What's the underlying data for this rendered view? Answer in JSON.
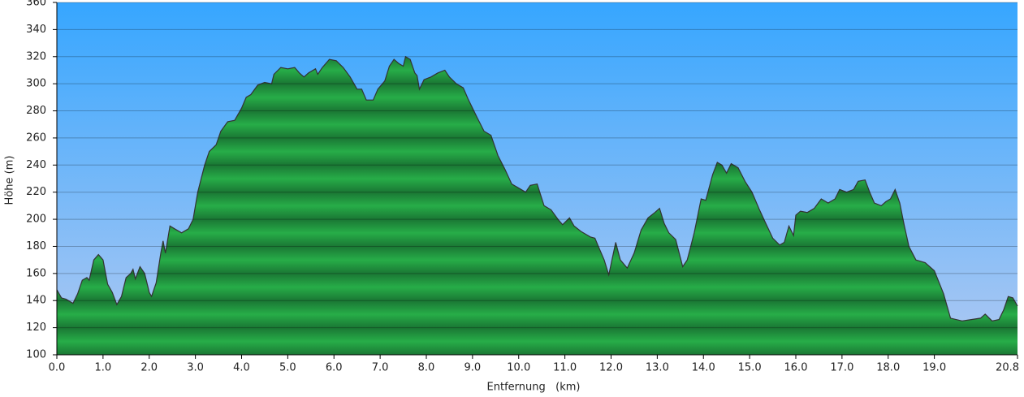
{
  "chart_data": {
    "type": "area",
    "x_label": "Entfernung   (km)",
    "y_label": "Höhe (m)",
    "xlim": [
      0,
      20.8
    ],
    "ylim": [
      100,
      360
    ],
    "xticks": [
      {
        "value": 0,
        "label": "0.0"
      },
      {
        "value": 1,
        "label": "1.0"
      },
      {
        "value": 2,
        "label": "2.0"
      },
      {
        "value": 3,
        "label": "3.0"
      },
      {
        "value": 4,
        "label": "4.0"
      },
      {
        "value": 5,
        "label": "5.0"
      },
      {
        "value": 6,
        "label": "6.0"
      },
      {
        "value": 7,
        "label": "7.0"
      },
      {
        "value": 8,
        "label": "8.0"
      },
      {
        "value": 9,
        "label": "9.0"
      },
      {
        "value": 10,
        "label": "10.0"
      },
      {
        "value": 11,
        "label": "11.0"
      },
      {
        "value": 12,
        "label": "12.0"
      },
      {
        "value": 13,
        "label": "13.0"
      },
      {
        "value": 14,
        "label": "14.0"
      },
      {
        "value": 15,
        "label": "15.0"
      },
      {
        "value": 16,
        "label": "16.0"
      },
      {
        "value": 17,
        "label": "17.0"
      },
      {
        "value": 18,
        "label": "18.0"
      },
      {
        "value": 19,
        "label": "19.0"
      },
      {
        "value": 20.8,
        "label": "20.8"
      }
    ],
    "yticks": [
      100,
      120,
      140,
      160,
      180,
      200,
      220,
      240,
      260,
      280,
      300,
      320,
      340,
      360
    ],
    "grid": true,
    "color": "#22a043",
    "x": [
      0.0,
      0.1,
      0.2,
      0.35,
      0.45,
      0.55,
      0.65,
      0.7,
      0.8,
      0.9,
      1.0,
      1.1,
      1.2,
      1.3,
      1.4,
      1.5,
      1.6,
      1.65,
      1.7,
      1.8,
      1.9,
      2.0,
      2.05,
      2.15,
      2.25,
      2.3,
      2.35,
      2.45,
      2.55,
      2.7,
      2.85,
      2.95,
      3.05,
      3.2,
      3.3,
      3.45,
      3.55,
      3.7,
      3.85,
      4.0,
      4.1,
      4.2,
      4.35,
      4.5,
      4.65,
      4.7,
      4.85,
      5.0,
      5.15,
      5.25,
      5.35,
      5.45,
      5.6,
      5.65,
      5.75,
      5.9,
      6.05,
      6.2,
      6.35,
      6.5,
      6.6,
      6.7,
      6.85,
      6.95,
      7.1,
      7.2,
      7.3,
      7.4,
      7.5,
      7.55,
      7.65,
      7.75,
      7.8,
      7.85,
      7.95,
      8.1,
      8.25,
      8.4,
      8.5,
      8.65,
      8.8,
      8.9,
      9.0,
      9.1,
      9.25,
      9.4,
      9.55,
      9.7,
      9.85,
      10.0,
      10.15,
      10.25,
      10.4,
      10.55,
      10.7,
      10.85,
      10.95,
      11.1,
      11.2,
      11.35,
      11.55,
      11.65,
      11.75,
      11.85,
      11.95,
      12.1,
      12.2,
      12.35,
      12.5,
      12.65,
      12.8,
      12.95,
      13.05,
      13.15,
      13.25,
      13.4,
      13.55,
      13.65,
      13.8,
      13.95,
      14.05,
      14.2,
      14.3,
      14.4,
      14.5,
      14.6,
      14.75,
      14.9,
      15.05,
      15.2,
      15.35,
      15.5,
      15.65,
      15.75,
      15.85,
      15.95,
      16.0,
      16.1,
      16.25,
      16.4,
      16.55,
      16.7,
      16.85,
      16.95,
      17.1,
      17.25,
      17.35,
      17.5,
      17.6,
      17.7,
      17.85,
      17.95,
      18.05,
      18.15,
      18.25,
      18.35,
      18.45,
      18.6,
      18.8,
      19.0,
      19.2,
      19.35,
      19.6,
      19.8,
      20.0,
      20.1,
      20.25,
      20.4,
      20.5,
      20.6,
      20.7,
      20.8
    ],
    "values": [
      148,
      142,
      141,
      138,
      145,
      155,
      157,
      155,
      170,
      174,
      170,
      152,
      146,
      137,
      143,
      157,
      160,
      163,
      156,
      165,
      160,
      146,
      143,
      153,
      175,
      184,
      175,
      195,
      193,
      190,
      193,
      200,
      220,
      240,
      250,
      255,
      265,
      272,
      273,
      282,
      290,
      292,
      299,
      301,
      300,
      307,
      312,
      311,
      312,
      308,
      305,
      308,
      311,
      307,
      312,
      318,
      317,
      312,
      305,
      296,
      296,
      288,
      288,
      296,
      302,
      313,
      318,
      315,
      313,
      320,
      318,
      308,
      306,
      296,
      303,
      305,
      308,
      310,
      305,
      300,
      297,
      289,
      282,
      275,
      265,
      262,
      247,
      237,
      226,
      223,
      220,
      225,
      226,
      210,
      207,
      200,
      196,
      201,
      195,
      191,
      187,
      186,
      178,
      170,
      159,
      183,
      170,
      164,
      175,
      192,
      201,
      205,
      208,
      197,
      190,
      185,
      165,
      170,
      190,
      215,
      214,
      233,
      242,
      240,
      234,
      241,
      238,
      228,
      220,
      208,
      197,
      186,
      181,
      183,
      195,
      188,
      203,
      206,
      205,
      208,
      215,
      212,
      215,
      222,
      220,
      222,
      228,
      229,
      220,
      212,
      210,
      213,
      215,
      222,
      212,
      195,
      180,
      170,
      168,
      162,
      145,
      127,
      125,
      126,
      127,
      130,
      125,
      126,
      133,
      143,
      142,
      136
    ]
  }
}
